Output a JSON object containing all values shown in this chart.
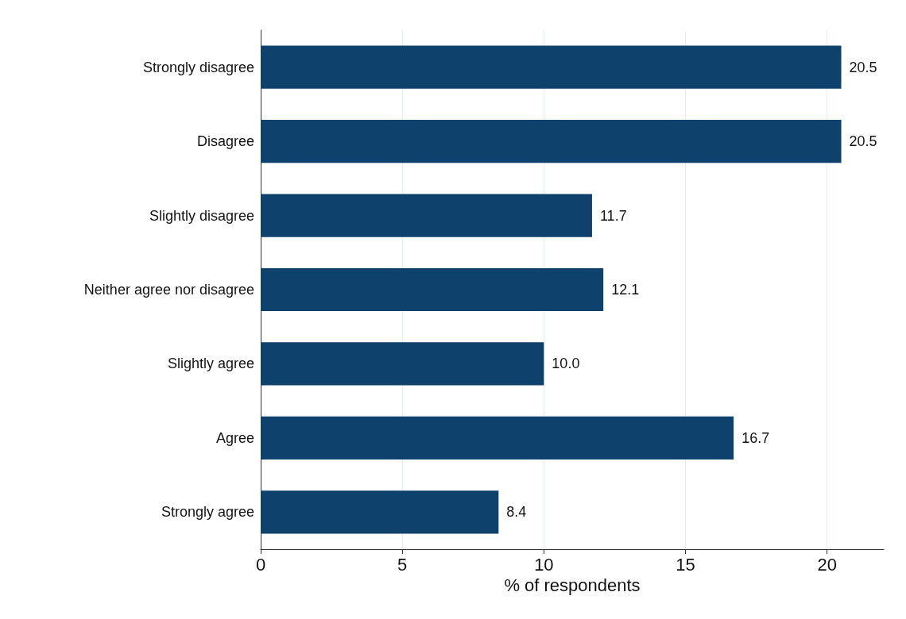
{
  "chart_data": {
    "type": "bar",
    "orientation": "horizontal",
    "xlabel": "% of respondents",
    "categories": [
      "Strongly disagree",
      "Disagree",
      "Slightly disagree",
      "Neither agree nor disagree",
      "Slightly agree",
      "Agree",
      "Strongly agree"
    ],
    "values": [
      20.5,
      20.5,
      11.7,
      12.1,
      10.0,
      16.7,
      8.4
    ],
    "value_labels": [
      "20.5",
      "20.5",
      "11.7",
      "12.1",
      "10.0",
      "16.7",
      "8.4"
    ],
    "color": "#0f416d",
    "xlim": [
      0,
      22
    ],
    "xticks": [
      0,
      5,
      10,
      15,
      20
    ],
    "grid": "x"
  }
}
